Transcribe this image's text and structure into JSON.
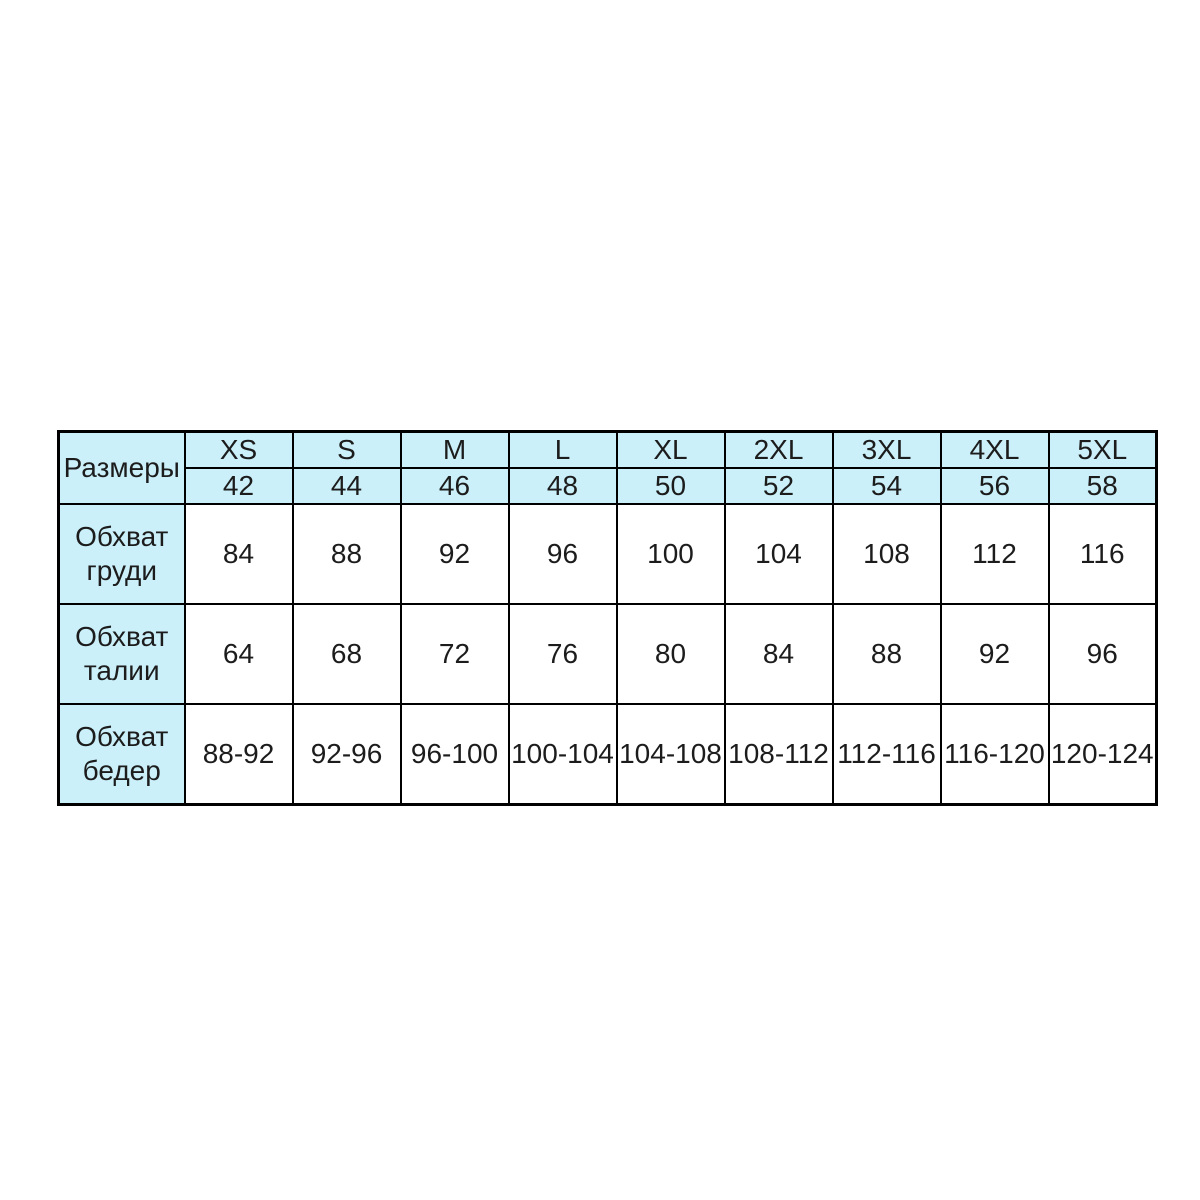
{
  "colors": {
    "corner_bg": "#cb9af5",
    "header_bg": "#cbf0fa",
    "label_bg": "#cbf0fa",
    "cell_bg": "#ffffff",
    "border_color": "#000000",
    "text_color": "#1c1c1c"
  },
  "table": {
    "corner_label": "Размеры",
    "columns": [
      {
        "size": "XS",
        "number": "42"
      },
      {
        "size": "S",
        "number": "44"
      },
      {
        "size": "M",
        "number": "46"
      },
      {
        "size": "L",
        "number": "48"
      },
      {
        "size": "XL",
        "number": "50"
      },
      {
        "size": "2XL",
        "number": "52"
      },
      {
        "size": "3XL",
        "number": "54"
      },
      {
        "size": "4XL",
        "number": "56"
      },
      {
        "size": "5XL",
        "number": "58"
      }
    ],
    "rows": [
      {
        "label": "Обхват груди",
        "values": [
          "84",
          "88",
          "92",
          "96",
          "100",
          "104",
          "108",
          "112",
          "116"
        ]
      },
      {
        "label": "Обхват талии",
        "values": [
          "64",
          "68",
          "72",
          "76",
          "80",
          "84",
          "88",
          "92",
          "96"
        ]
      },
      {
        "label": "Обхват бедер",
        "values": [
          "88-92",
          "92-96",
          "96-100",
          "100-104",
          "104-108",
          "108-112",
          "112-116",
          "116-120",
          "120-124"
        ]
      }
    ]
  }
}
